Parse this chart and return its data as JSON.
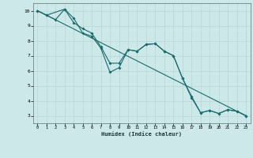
{
  "xlabel": "Humidex (Indice chaleur)",
  "bg_color": "#cce8e8",
  "grid_color": "#b8d4d4",
  "line_color": "#1a6b6b",
  "xlim": [
    -0.5,
    23.5
  ],
  "ylim": [
    2.5,
    10.5
  ],
  "xticks": [
    0,
    1,
    2,
    3,
    4,
    5,
    6,
    7,
    8,
    9,
    10,
    11,
    12,
    13,
    14,
    15,
    16,
    17,
    18,
    19,
    20,
    21,
    22,
    23
  ],
  "yticks": [
    3,
    4,
    5,
    6,
    7,
    8,
    9,
    10
  ],
  "line1_x": [
    0,
    1,
    2,
    3,
    4,
    5,
    6,
    7,
    8,
    9,
    10,
    11,
    12,
    13,
    14,
    15,
    16,
    17,
    18,
    19,
    20,
    21,
    22,
    23
  ],
  "line1_y": [
    10,
    9.7,
    9.4,
    10.1,
    9.5,
    8.5,
    8.3,
    7.5,
    5.9,
    6.2,
    7.4,
    7.3,
    7.75,
    7.8,
    7.3,
    7.0,
    5.5,
    4.3,
    3.2,
    3.35,
    3.15,
    3.4,
    3.3,
    3.0
  ],
  "line2_x": [
    0,
    1,
    3,
    4,
    5,
    6,
    7,
    8,
    9,
    10,
    11,
    12,
    13,
    14,
    15,
    16,
    17,
    18,
    19,
    20,
    21,
    22,
    23
  ],
  "line2_y": [
    10,
    9.7,
    10.1,
    9.2,
    8.8,
    8.5,
    7.6,
    6.5,
    6.5,
    7.4,
    7.3,
    7.75,
    7.8,
    7.3,
    7.0,
    5.5,
    4.2,
    3.2,
    3.35,
    3.15,
    3.4,
    3.3,
    3.0
  ],
  "line3_x": [
    0,
    23
  ],
  "line3_y": [
    10,
    3.0
  ]
}
